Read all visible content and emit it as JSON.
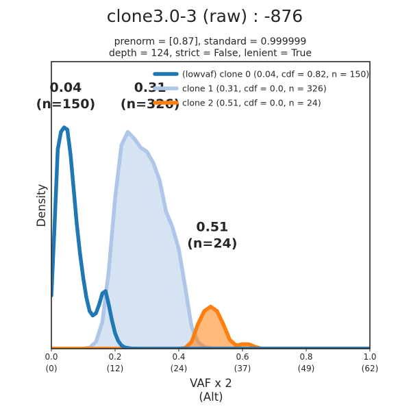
{
  "chart_data": {
    "type": "area",
    "title": "clone3.0-3 (raw) : -876",
    "subtitle_lines": [
      "prenorm = [0.87], standard = 0.999999",
      "depth = 124, strict = False, lenient = True"
    ],
    "xlabel_lines": [
      "VAF x 2",
      "(Alt)"
    ],
    "ylabel": "Density",
    "xlim": [
      0.0,
      1.0
    ],
    "ylim": [
      0,
      1.0
    ],
    "grid": false,
    "legend_position": "top-right",
    "x_ticks": [
      {
        "value": 0.0,
        "label": "0.0",
        "sublabel": "(0)"
      },
      {
        "value": 0.2,
        "label": "0.2",
        "sublabel": "(12)"
      },
      {
        "value": 0.4,
        "label": "0.4",
        "sublabel": "(24)"
      },
      {
        "value": 0.6,
        "label": "0.6",
        "sublabel": "(37)"
      },
      {
        "value": 0.8,
        "label": "0.8",
        "sublabel": "(49)"
      },
      {
        "value": 1.0,
        "label": "1.0",
        "sublabel": "(62)"
      }
    ],
    "series": [
      {
        "name": "(lowvaf) clone 0 (0.04, cdf = 0.82, n = 150)",
        "color": "#1f77b4",
        "fill": false,
        "peak_label": "0.04",
        "peak_n_label": "(n=150)",
        "peak_label_anchor": [
          0.045,
          0.99
        ],
        "x": [
          0.0,
          0.01,
          0.02,
          0.03,
          0.04,
          0.05,
          0.06,
          0.07,
          0.08,
          0.09,
          0.1,
          0.11,
          0.12,
          0.13,
          0.14,
          0.15,
          0.16,
          0.17,
          0.18,
          0.19,
          0.2,
          0.21,
          0.22,
          0.23,
          0.24,
          0.25,
          0.27,
          1.0
        ],
        "y": [
          0.24,
          0.56,
          0.9,
          0.98,
          1.0,
          0.99,
          0.88,
          0.72,
          0.56,
          0.43,
          0.32,
          0.23,
          0.17,
          0.15,
          0.16,
          0.2,
          0.25,
          0.26,
          0.2,
          0.13,
          0.07,
          0.035,
          0.015,
          0.006,
          0.003,
          0.001,
          0.0,
          0.0
        ]
      },
      {
        "name": "clone 1 (0.31, cdf = 0.0, n = 326)",
        "color": "#aec7e8",
        "fill": true,
        "peak_label": "0.31",
        "peak_n_label": "(n=326)",
        "peak_label_anchor": [
          0.31,
          0.99
        ],
        "x": [
          0.0,
          0.1,
          0.12,
          0.14,
          0.16,
          0.18,
          0.2,
          0.22,
          0.24,
          0.26,
          0.28,
          0.3,
          0.32,
          0.34,
          0.36,
          0.38,
          0.4,
          0.42,
          0.44,
          0.46,
          0.48,
          0.5,
          0.52,
          1.0
        ],
        "y": [
          0.0,
          0.0,
          0.005,
          0.03,
          0.12,
          0.35,
          0.68,
          0.92,
          0.98,
          0.95,
          0.91,
          0.89,
          0.84,
          0.76,
          0.62,
          0.55,
          0.45,
          0.28,
          0.1,
          0.03,
          0.008,
          0.002,
          0.0,
          0.0
        ]
      },
      {
        "name": "clone 2 (0.51, cdf = 0.0, n = 24)",
        "color": "#ff7f0e",
        "fill": true,
        "peak_label": "0.51",
        "peak_n_label": "(n=24)",
        "peak_label_anchor": [
          0.505,
          0.36
        ],
        "x": [
          0.0,
          0.4,
          0.42,
          0.44,
          0.46,
          0.48,
          0.5,
          0.52,
          0.54,
          0.56,
          0.58,
          0.6,
          0.62,
          0.64,
          0.66,
          1.0
        ],
        "y": [
          0.0,
          0.0,
          0.003,
          0.03,
          0.11,
          0.17,
          0.19,
          0.17,
          0.11,
          0.04,
          0.015,
          0.02,
          0.02,
          0.008,
          0.0,
          0.0
        ]
      }
    ]
  }
}
